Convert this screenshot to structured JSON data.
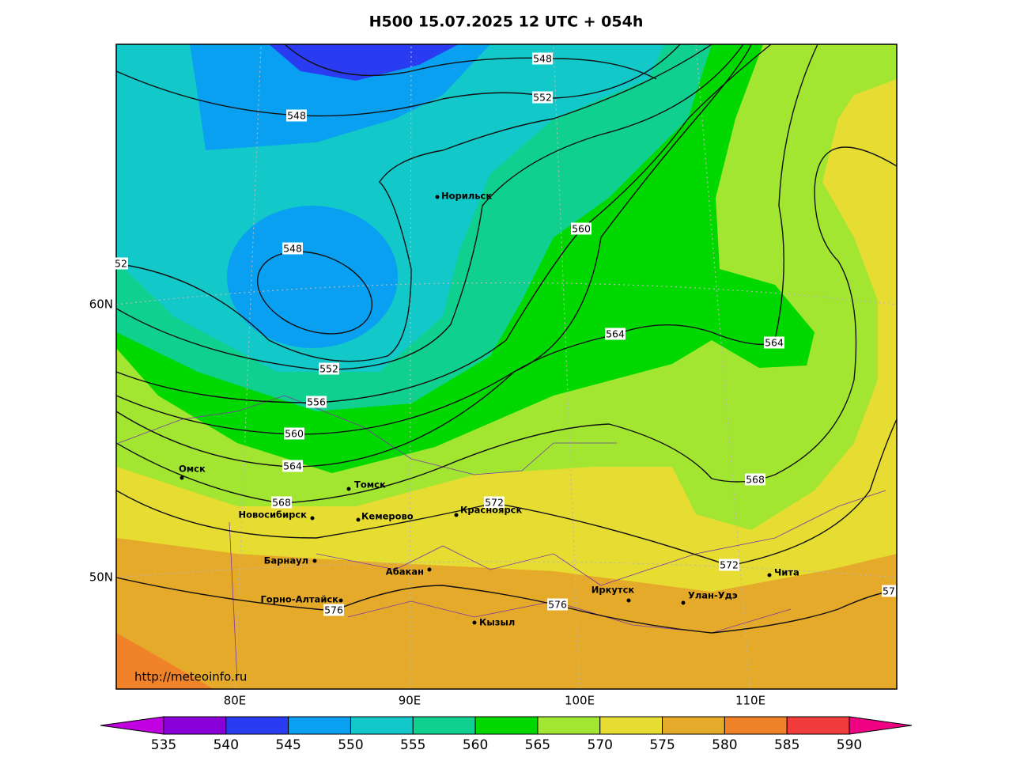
{
  "title": "H500  15.07.2025 12 UTC + 054h",
  "url": "http://meteoinfo.ru",
  "longitude_labels": [
    "80E",
    "90E",
    "100E",
    "110E"
  ],
  "latitude_labels": [
    "60N",
    "50N"
  ],
  "cities": [
    "Норильск",
    "Омск",
    "Томск",
    "Новосибирск",
    "Кемерово",
    "Красноярск",
    "Барнаул",
    "Абакан",
    "Горно-Алтайск",
    "Кызыл",
    "Иркутск",
    "Улан-Удэ",
    "Чита"
  ],
  "contour_labels": [
    "548",
    "552",
    "548",
    "548",
    "52",
    "560",
    "552",
    "556",
    "560",
    "564",
    "564",
    "564",
    "568",
    "568",
    "572",
    "572",
    "576",
    "576",
    "57"
  ],
  "colorbar": {
    "levels": [
      535,
      540,
      545,
      550,
      555,
      560,
      565,
      570,
      575,
      580,
      585,
      590
    ],
    "colors": [
      "#8a00d8",
      "#2a3cf2",
      "#0aa0f2",
      "#12c8c8",
      "#10d090",
      "#00d800",
      "#a2e632",
      "#e6dc32",
      "#e6aa2a",
      "#f0822a",
      "#f03c3c"
    ],
    "extend_colors": [
      "#c000e0",
      "#f00082"
    ]
  }
}
